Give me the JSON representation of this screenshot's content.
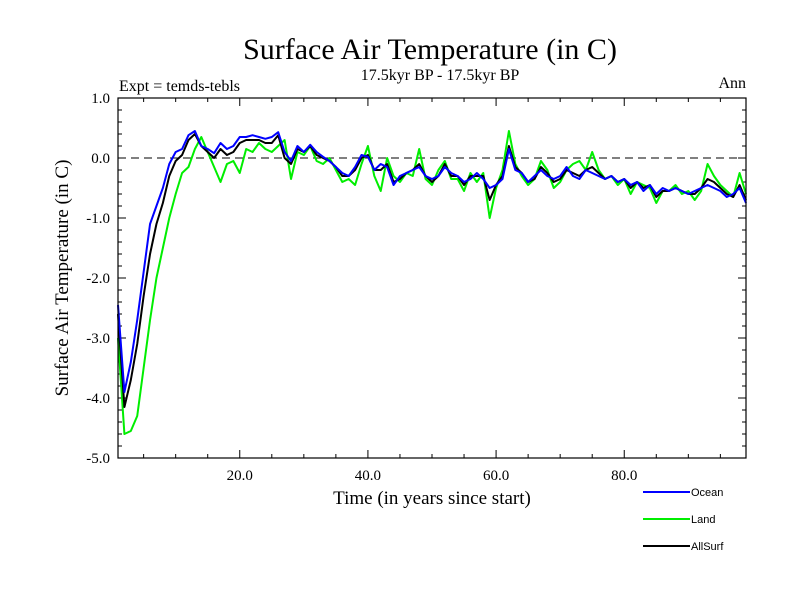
{
  "chart_data": {
    "type": "line",
    "title": "Surface Air Temperature (in C)",
    "subtitle": "17.5kyr BP - 17.5kyr BP",
    "left_label": "Expt = temds-tebls",
    "right_label": "Ann",
    "xlabel": "Time (in years since start)",
    "ylabel": "Surface Air Temperature (in C)",
    "xlim": [
      1,
      99
    ],
    "ylim": [
      -5.0,
      1.0
    ],
    "x_ticks": [
      20,
      40,
      60,
      80
    ],
    "x_tick_labels": [
      "20.0",
      "40.0",
      "60.0",
      "80.0"
    ],
    "y_ticks": [
      -5,
      -4,
      -3,
      -2,
      -1,
      0,
      1
    ],
    "y_tick_labels": [
      "-5.0",
      "-4.0",
      "-3.0",
      "-2.0",
      "-1.0",
      "0.0",
      "1.0"
    ],
    "reference_line": 0.0,
    "legend_position": "bottom-right",
    "x": [
      1,
      2,
      3,
      4,
      5,
      6,
      7,
      8,
      9,
      10,
      11,
      12,
      13,
      14,
      15,
      16,
      17,
      18,
      19,
      20,
      21,
      22,
      23,
      24,
      25,
      26,
      27,
      28,
      29,
      30,
      31,
      32,
      33,
      34,
      35,
      36,
      37,
      38,
      39,
      40,
      41,
      42,
      43,
      44,
      45,
      46,
      47,
      48,
      49,
      50,
      51,
      52,
      53,
      54,
      55,
      56,
      57,
      58,
      59,
      60,
      61,
      62,
      63,
      64,
      65,
      66,
      67,
      68,
      69,
      70,
      71,
      72,
      73,
      74,
      75,
      76,
      77,
      78,
      79,
      80,
      81,
      82,
      83,
      84,
      85,
      86,
      87,
      88,
      89,
      90,
      91,
      92,
      93,
      94,
      95,
      96,
      97,
      98,
      99
    ],
    "series": [
      {
        "name": "Ocean",
        "color": "#0000ff",
        "values": [
          -2.45,
          -3.9,
          -3.4,
          -2.7,
          -1.9,
          -1.1,
          -0.8,
          -0.5,
          -0.1,
          0.1,
          0.15,
          0.38,
          0.45,
          0.2,
          0.15,
          0.08,
          0.25,
          0.15,
          0.2,
          0.35,
          0.35,
          0.38,
          0.35,
          0.32,
          0.35,
          0.43,
          0.1,
          -0.05,
          0.2,
          0.1,
          0.22,
          0.1,
          0.02,
          -0.05,
          -0.15,
          -0.25,
          -0.3,
          -0.15,
          0.05,
          0.02,
          -0.2,
          -0.1,
          -0.15,
          -0.45,
          -0.3,
          -0.25,
          -0.2,
          -0.15,
          -0.3,
          -0.35,
          -0.3,
          -0.15,
          -0.25,
          -0.3,
          -0.4,
          -0.35,
          -0.25,
          -0.35,
          -0.5,
          -0.45,
          -0.35,
          0.15,
          -0.2,
          -0.25,
          -0.4,
          -0.3,
          -0.2,
          -0.3,
          -0.35,
          -0.3,
          -0.15,
          -0.3,
          -0.35,
          -0.2,
          -0.25,
          -0.3,
          -0.35,
          -0.3,
          -0.4,
          -0.35,
          -0.45,
          -0.4,
          -0.55,
          -0.45,
          -0.6,
          -0.5,
          -0.55,
          -0.5,
          -0.55,
          -0.6,
          -0.55,
          -0.5,
          -0.45,
          -0.5,
          -0.55,
          -0.65,
          -0.6,
          -0.5,
          -0.75
        ]
      },
      {
        "name": "Land",
        "color": "#00ee00",
        "values": [
          -3.0,
          -4.6,
          -4.55,
          -4.3,
          -3.5,
          -2.7,
          -2.0,
          -1.5,
          -1.0,
          -0.6,
          -0.25,
          -0.15,
          0.15,
          0.35,
          0.1,
          -0.15,
          -0.4,
          -0.1,
          -0.05,
          -0.25,
          0.15,
          0.1,
          0.25,
          0.15,
          0.1,
          0.2,
          0.3,
          -0.35,
          0.1,
          0.05,
          0.2,
          -0.05,
          -0.1,
          0.0,
          -0.2,
          -0.4,
          -0.35,
          -0.45,
          -0.1,
          0.2,
          -0.3,
          -0.55,
          0.0,
          -0.3,
          -0.4,
          -0.25,
          -0.3,
          0.15,
          -0.35,
          -0.45,
          -0.2,
          -0.05,
          -0.35,
          -0.35,
          -0.55,
          -0.25,
          -0.4,
          -0.25,
          -1.0,
          -0.5,
          -0.2,
          0.45,
          -0.1,
          -0.3,
          -0.45,
          -0.35,
          -0.05,
          -0.2,
          -0.5,
          -0.4,
          -0.2,
          -0.1,
          -0.05,
          -0.2,
          0.1,
          -0.2,
          -0.35,
          -0.3,
          -0.45,
          -0.35,
          -0.6,
          -0.4,
          -0.45,
          -0.5,
          -0.75,
          -0.55,
          -0.55,
          -0.45,
          -0.6,
          -0.55,
          -0.7,
          -0.55,
          -0.1,
          -0.3,
          -0.45,
          -0.55,
          -0.65,
          -0.25,
          -0.6
        ]
      },
      {
        "name": "AllSurf",
        "color": "#000000",
        "values": [
          -2.6,
          -4.15,
          -3.7,
          -3.1,
          -2.3,
          -1.6,
          -1.1,
          -0.75,
          -0.3,
          -0.05,
          0.05,
          0.3,
          0.4,
          0.2,
          0.1,
          0.0,
          0.15,
          0.05,
          0.1,
          0.25,
          0.3,
          0.3,
          0.3,
          0.25,
          0.25,
          0.38,
          0.0,
          -0.1,
          0.15,
          0.1,
          0.2,
          0.05,
          0.0,
          -0.05,
          -0.15,
          -0.3,
          -0.3,
          -0.2,
          0.0,
          0.05,
          -0.2,
          -0.2,
          -0.1,
          -0.4,
          -0.35,
          -0.25,
          -0.2,
          -0.1,
          -0.3,
          -0.4,
          -0.3,
          -0.1,
          -0.3,
          -0.3,
          -0.45,
          -0.3,
          -0.3,
          -0.3,
          -0.7,
          -0.45,
          -0.3,
          0.2,
          -0.15,
          -0.25,
          -0.4,
          -0.35,
          -0.15,
          -0.25,
          -0.4,
          -0.35,
          -0.2,
          -0.25,
          -0.3,
          -0.2,
          -0.15,
          -0.25,
          -0.35,
          -0.3,
          -0.4,
          -0.35,
          -0.5,
          -0.4,
          -0.5,
          -0.45,
          -0.65,
          -0.55,
          -0.55,
          -0.5,
          -0.55,
          -0.6,
          -0.6,
          -0.5,
          -0.35,
          -0.4,
          -0.5,
          -0.6,
          -0.65,
          -0.45,
          -0.7
        ]
      }
    ]
  }
}
